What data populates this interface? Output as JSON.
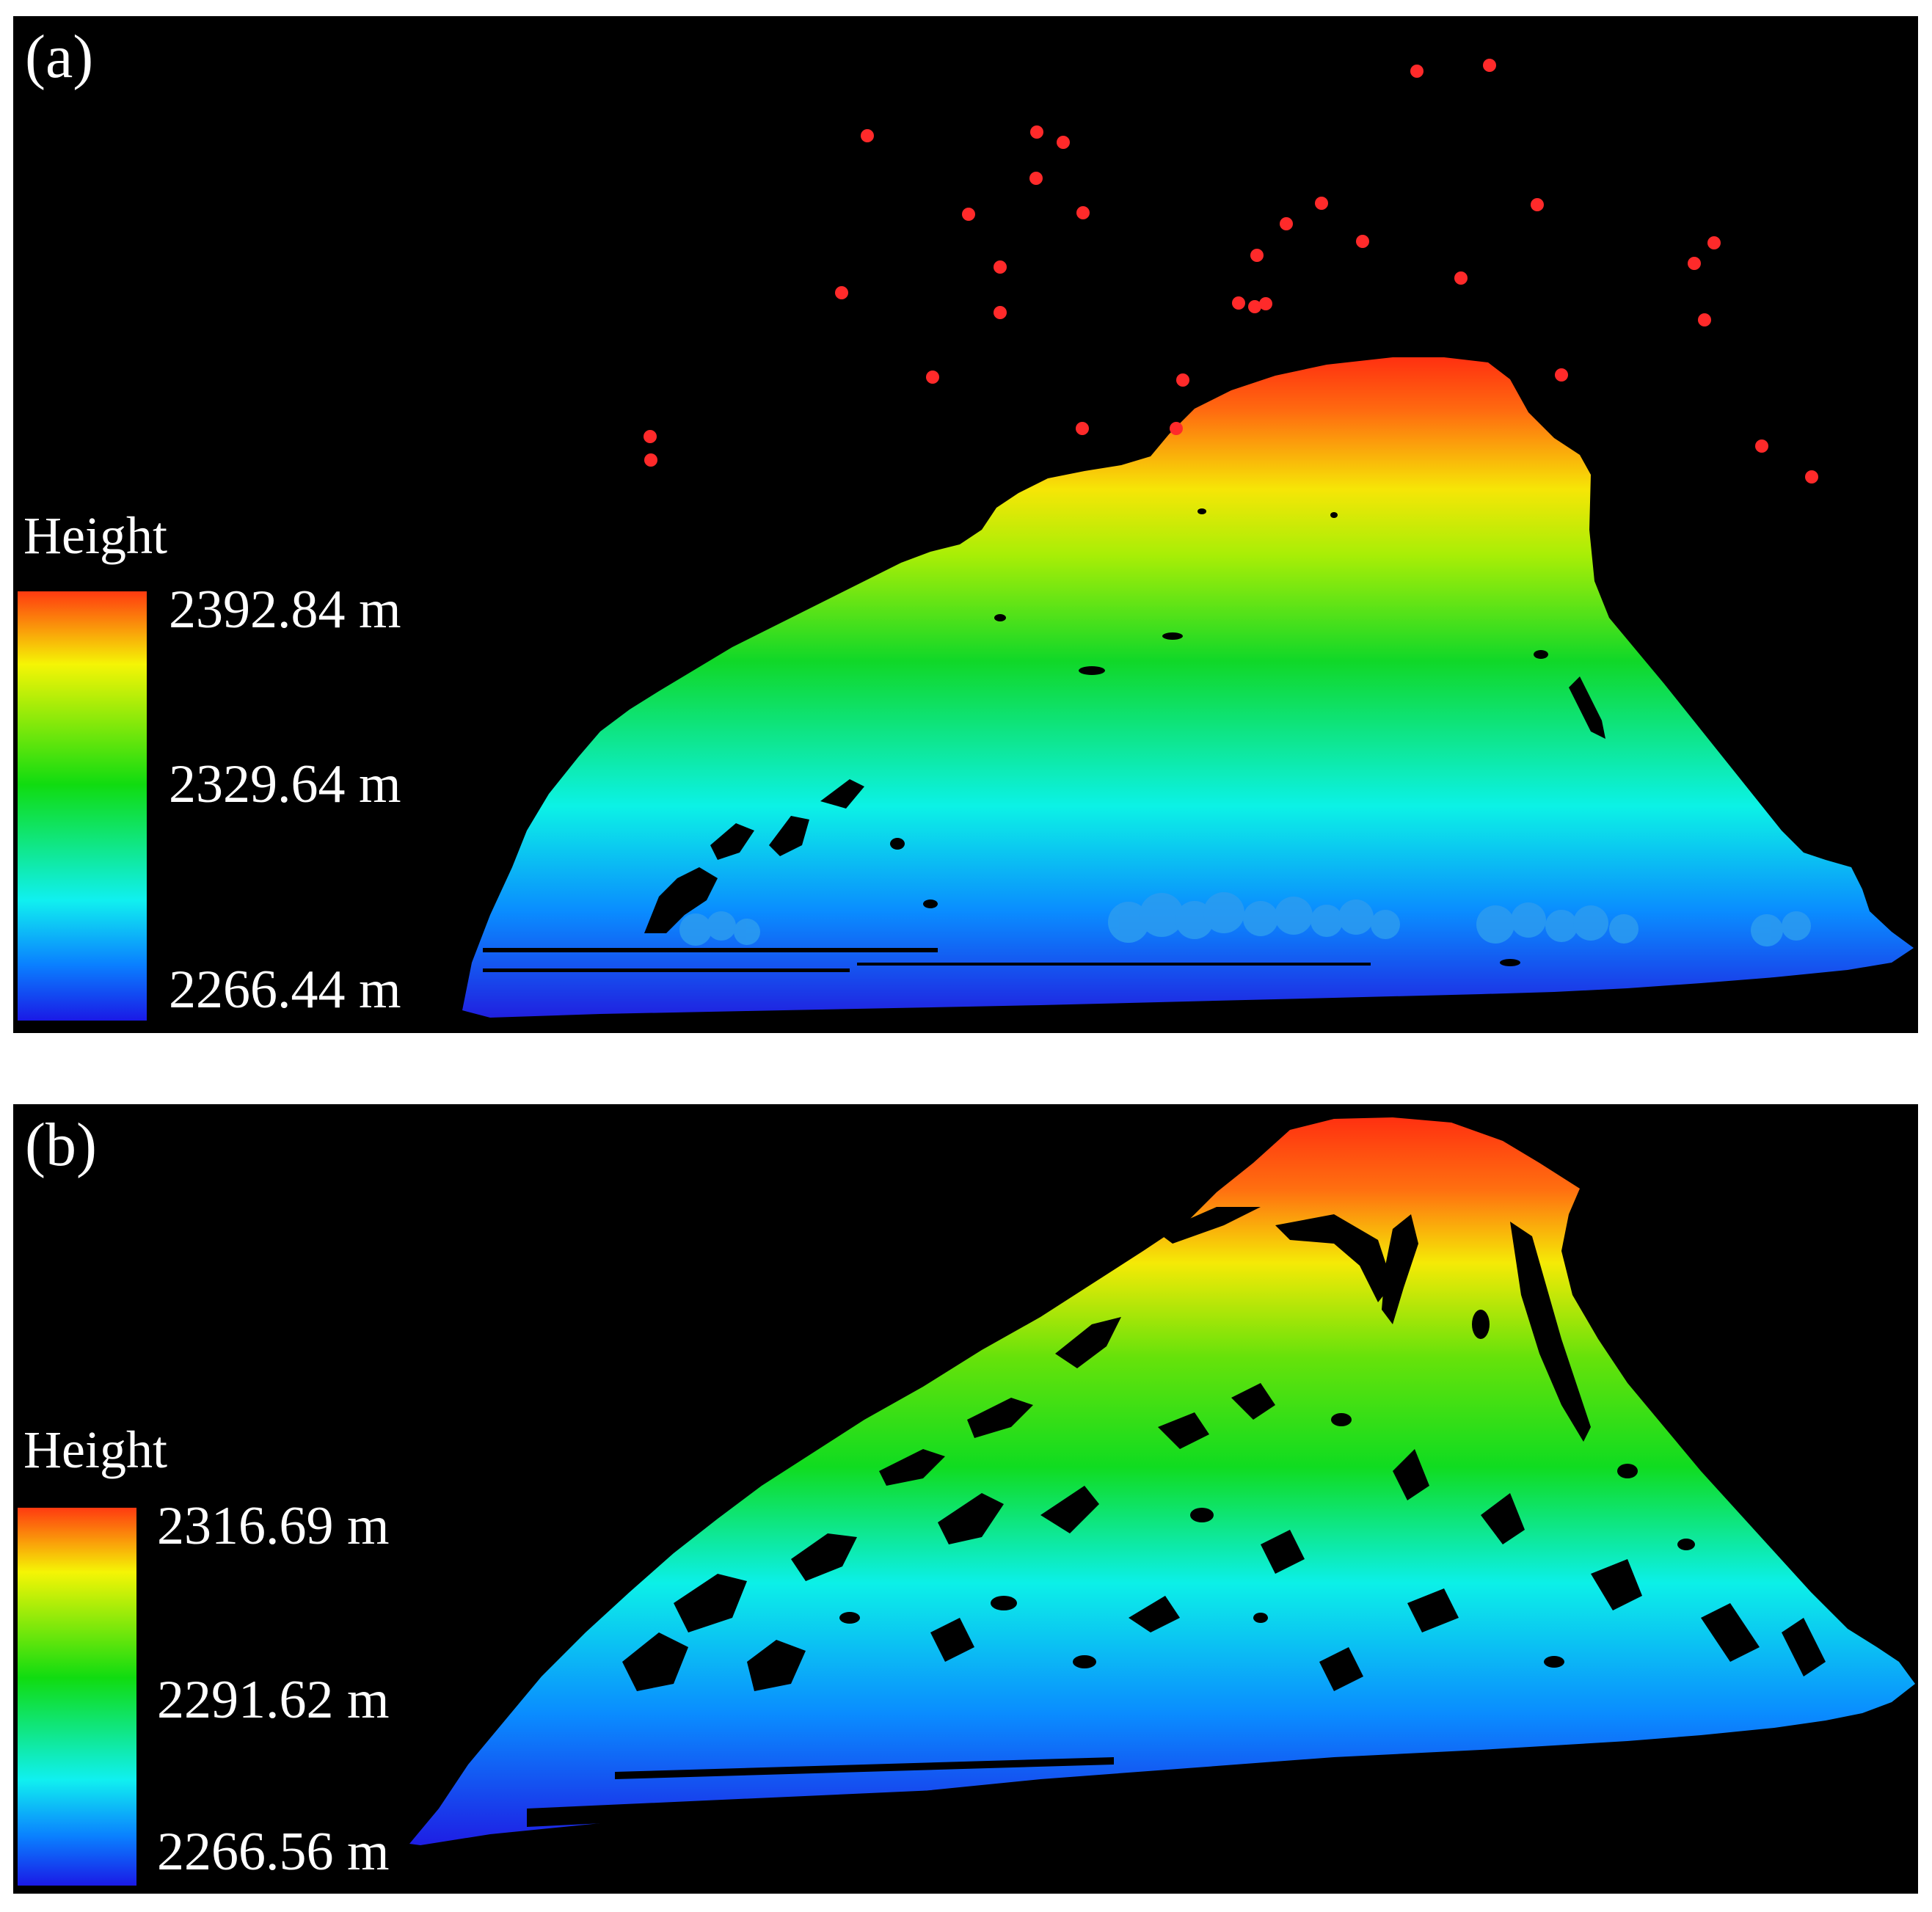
{
  "colors": {
    "background": "#000000",
    "outlier": "#ff2a2a",
    "ramp": [
      "#1a1ae6",
      "#0a80ff",
      "#10f0f0",
      "#10dc10",
      "#f5f505",
      "#ff8a10",
      "#ff3a10"
    ]
  },
  "panels": [
    {
      "label": "(a)",
      "legend_title": "Height",
      "legend": {
        "max": "2392.84 m",
        "mid": "2329.64 m",
        "min": "2266.44 m"
      }
    },
    {
      "label": "(b)",
      "legend_title": "Height",
      "legend": {
        "max": "2316.69 m",
        "mid": "2291.62 m",
        "min": "2266.56 m"
      }
    }
  ]
}
